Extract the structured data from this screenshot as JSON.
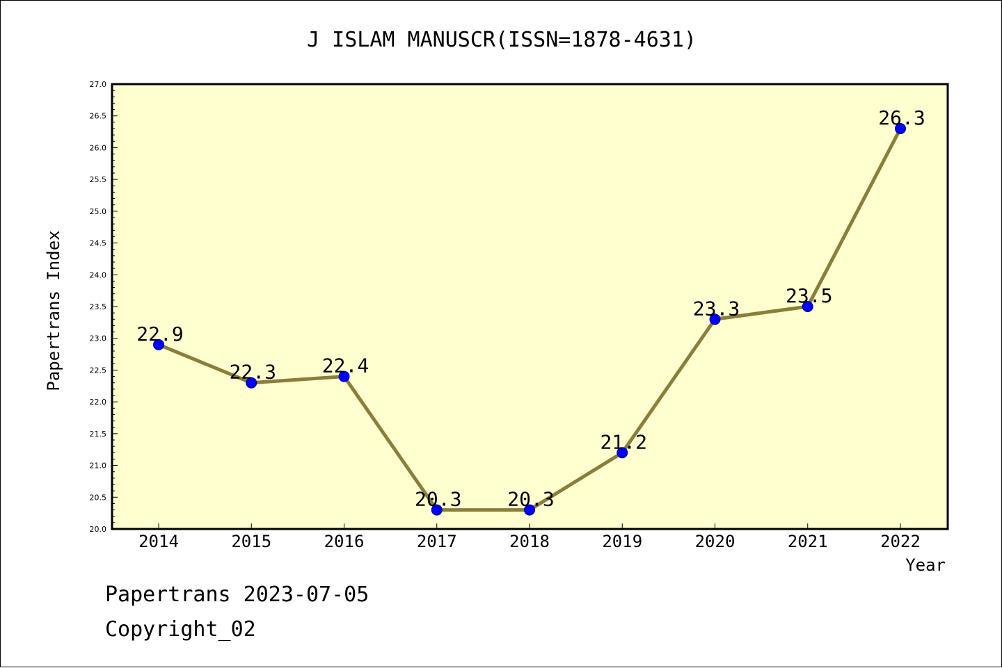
{
  "chart_data": {
    "type": "line",
    "title": "J ISLAM MANUSCR(ISSN=1878-4631)",
    "xlabel": "Year",
    "ylabel": "Papertrans Index",
    "x": [
      "2014",
      "2015",
      "2016",
      "2017",
      "2018",
      "2019",
      "2020",
      "2021",
      "2022"
    ],
    "series": [
      {
        "values": [
          22.9,
          22.3,
          22.4,
          20.3,
          20.3,
          21.2,
          23.3,
          23.5,
          26.3
        ],
        "data_labels": [
          "22.9",
          "22.3",
          "22.4",
          "20.3",
          "20.3",
          "21.2",
          "23.3",
          "23.5",
          "26.3"
        ]
      }
    ],
    "ylim": [
      20.0,
      27.0
    ],
    "yticks": [
      "20.0",
      "20.5",
      "21.0",
      "21.5",
      "22.0",
      "22.5",
      "23.0",
      "23.5",
      "24.0",
      "24.5",
      "25.0",
      "25.5",
      "26.0",
      "26.5",
      "27.0"
    ],
    "grid": false,
    "legend": "none",
    "colors": {
      "plot_background": "#ffffd0",
      "line": "#8b7d3a",
      "marker": "#0000ff",
      "marker_edge": "#00008b"
    }
  },
  "footer": {
    "date_line": "Papertrans 2023-07-05",
    "copyright": "Copyright_02"
  }
}
